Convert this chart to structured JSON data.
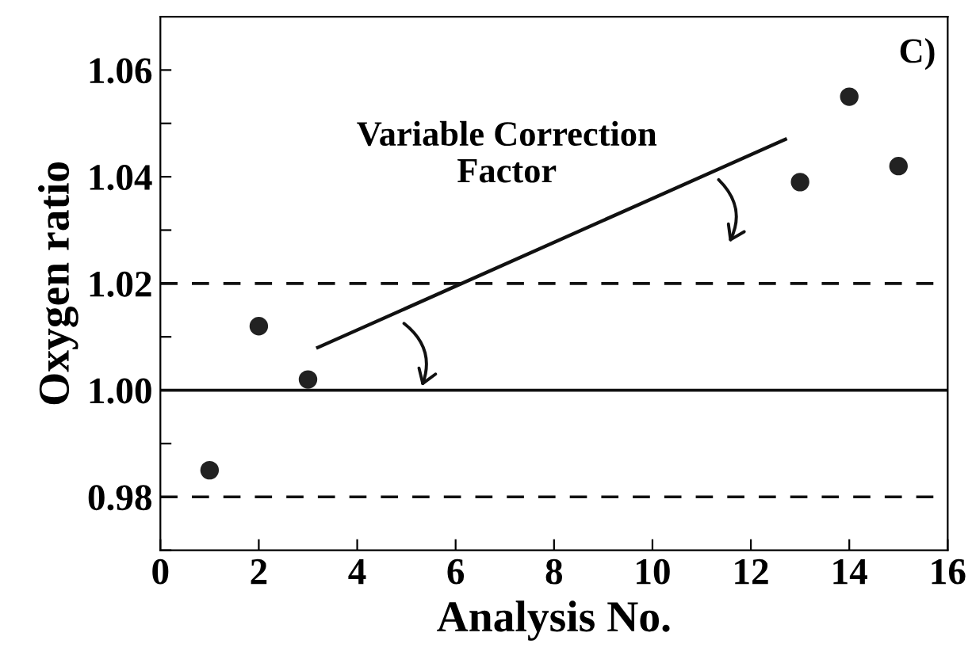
{
  "chart_data": {
    "type": "scatter",
    "xlabel": "Analysis No.",
    "ylabel": "Oxygen ratio",
    "series": [
      {
        "color": "#222222",
        "marker": "circle",
        "x": [
          1,
          2,
          3,
          13,
          14,
          15
        ],
        "values": [
          0.985,
          1.012,
          1.002,
          1.039,
          1.055,
          1.042
        ]
      },
      {
        "type": "line",
        "color": "#111111",
        "marker": "none",
        "line_style": "solid",
        "x": [
          3.2,
          12.7
        ],
        "values": [
          1.008,
          1.047
        ]
      }
    ],
    "xlim": [
      0,
      16
    ],
    "xticks": [
      0,
      2,
      4,
      6,
      8,
      10,
      12,
      14,
      16
    ],
    "ylim": [
      0.97,
      1.07
    ],
    "yticks": [
      {
        "value": 0.97,
        "label": null
      },
      0.98,
      {
        "value": 0.99,
        "label": null
      },
      {
        "value": 1.0,
        "label": "1.00"
      },
      {
        "value": 1.01,
        "label": null
      },
      1.02,
      {
        "value": 1.03,
        "label": null
      },
      1.04,
      {
        "value": 1.05,
        "label": null
      },
      1.06
    ],
    "ref_lines": [
      {
        "axis": "y",
        "value": 1.0,
        "line_style": "solid",
        "color": "#111111"
      },
      {
        "axis": "y",
        "value": 1.02,
        "line_style": "dashed",
        "color": "#111111"
      },
      {
        "axis": "y",
        "value": 0.98,
        "line_style": "dashed",
        "color": "#111111"
      }
    ],
    "annotations": [
      "Variable Correction\nFactor",
      "C)"
    ],
    "grid": false,
    "legend": false
  }
}
